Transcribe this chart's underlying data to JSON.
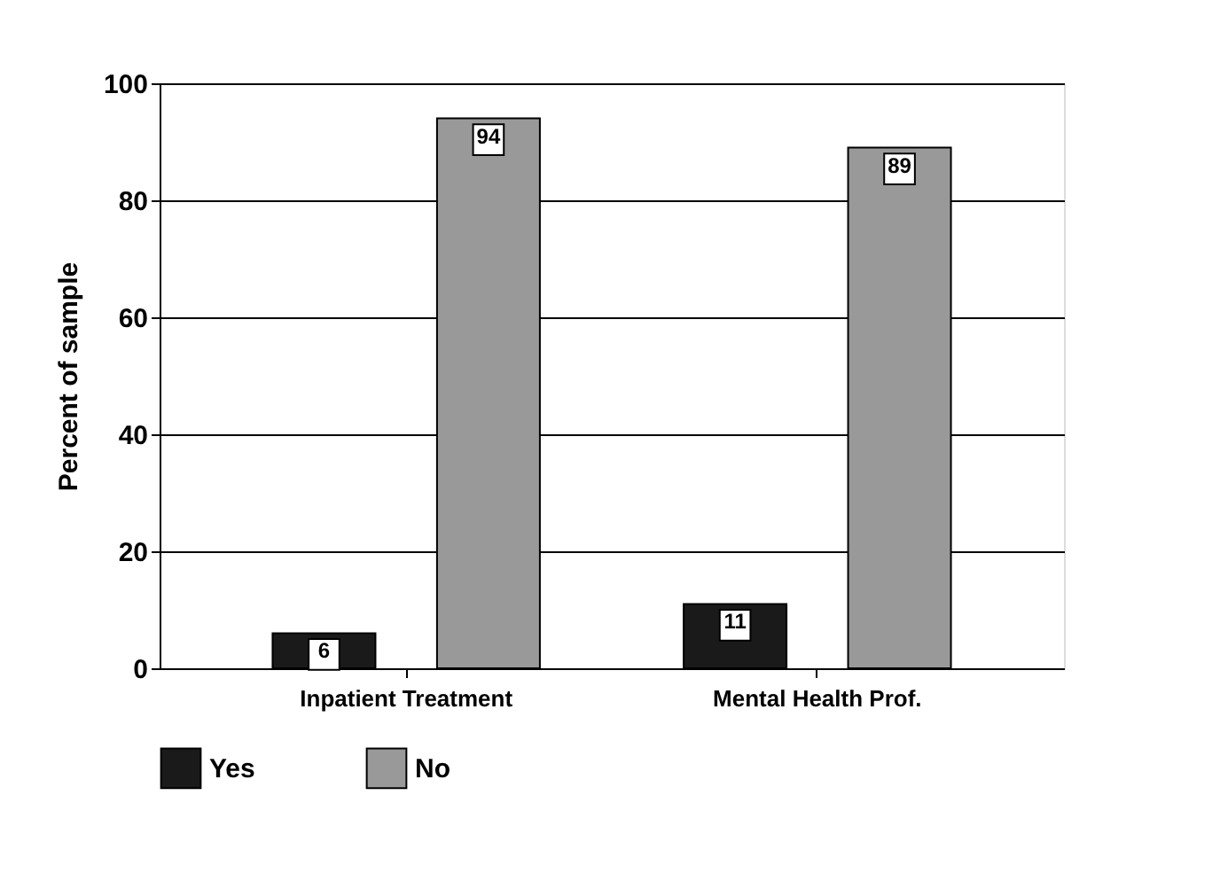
{
  "chart_data": {
    "type": "bar",
    "ylabel": "Percent of sample",
    "categories": [
      "Inpatient Treatment",
      "Mental Health Prof."
    ],
    "series": [
      {
        "name": "Yes",
        "color": "#1a1a1a",
        "values": [
          6,
          11
        ]
      },
      {
        "name": "No",
        "color": "#999999",
        "values": [
          94,
          89
        ]
      }
    ],
    "ylim": [
      0,
      100
    ],
    "yticks": [
      0,
      20,
      40,
      60,
      80,
      100
    ],
    "grid": "y",
    "legend": "bottom",
    "data_labels": true
  }
}
